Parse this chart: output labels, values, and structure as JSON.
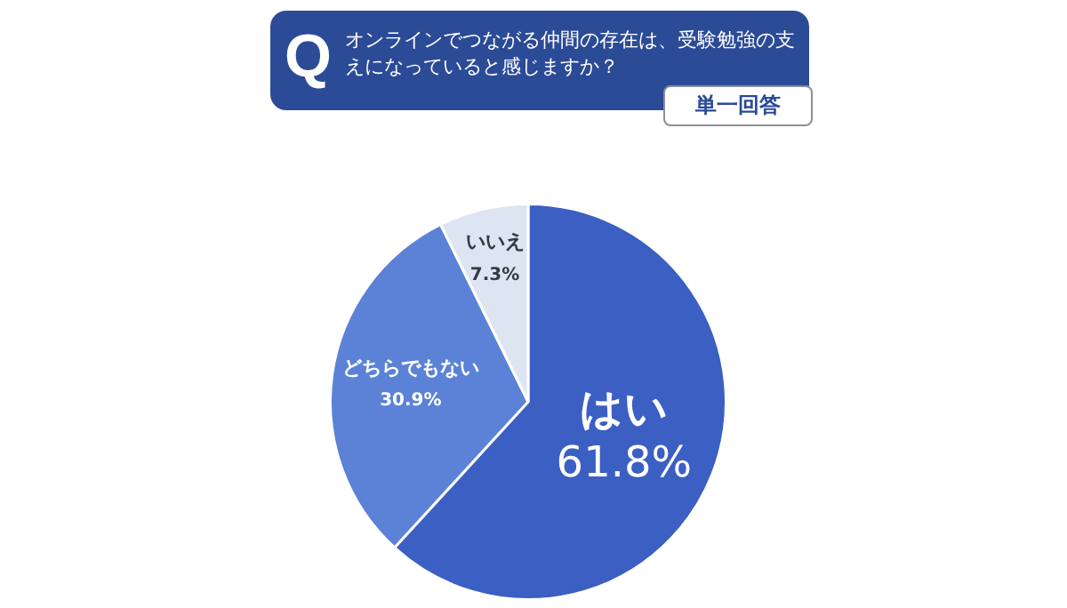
{
  "chart_data": {
    "type": "pie",
    "title": "オンラインでつながる仲間の存在は、受験勉強の支えになっていると感じますか？",
    "subtitle": "単一回答",
    "annotations": [
      "Q"
    ],
    "categories": [
      "はい",
      "どちらでもない",
      "いいえ"
    ],
    "values": [
      61.8,
      30.9,
      7.3
    ],
    "colors": [
      "#3b5fc2",
      "#5b82d6",
      "#dde5f3"
    ],
    "value_labels": [
      "61.8%",
      "30.9%",
      "7.3%"
    ],
    "legend": false
  }
}
